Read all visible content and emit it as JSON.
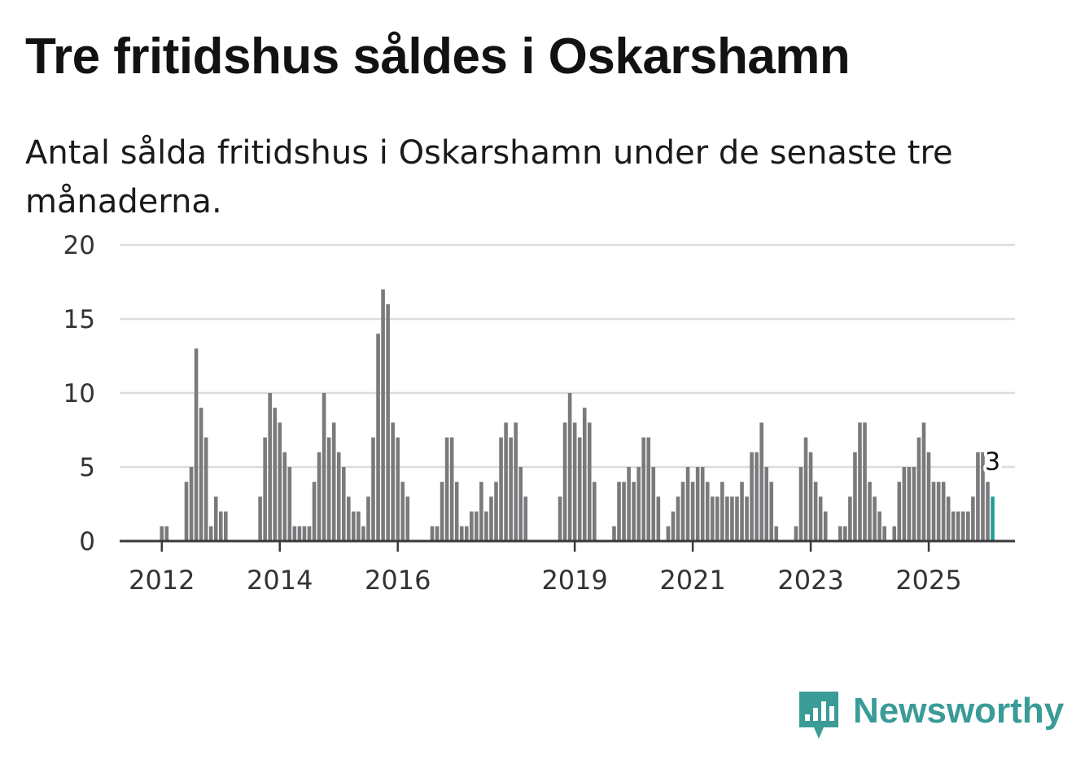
{
  "title": "Tre fritidshus såldes i Oskarshamn",
  "subtitle": "Antal sålda fritidshus i Oskarshamn under de senaste tre månaderna.",
  "brand": {
    "name": "Newsworthy",
    "color": "#3a9b97"
  },
  "colors": {
    "bar": "#7a797c",
    "highlight": "#1e9e96",
    "grid": "#dcdcdc",
    "axis": "#3a3a3a"
  },
  "chart_data": {
    "type": "bar",
    "title": "Tre fritidshus såldes i Oskarshamn",
    "subtitle": "Antal sålda fritidshus i Oskarshamn under de senaste tre månaderna.",
    "xlabel": "",
    "ylabel": "",
    "ylim": [
      0,
      20
    ],
    "yticks": [
      0,
      5,
      10,
      15,
      20
    ],
    "xticks": [
      "2012",
      "2014",
      "2016",
      "2019",
      "2021",
      "2023",
      "2025"
    ],
    "grid": true,
    "series_start": "2011-04",
    "frequency": "monthly",
    "highlight_label": "3",
    "values": [
      0,
      0,
      0,
      0,
      0,
      0,
      0,
      0,
      0,
      1,
      1,
      0,
      0,
      0,
      4,
      5,
      13,
      9,
      7,
      1,
      3,
      2,
      2,
      0,
      0,
      0,
      0,
      0,
      0,
      3,
      7,
      10,
      9,
      8,
      6,
      5,
      1,
      1,
      1,
      1,
      4,
      6,
      10,
      7,
      8,
      6,
      5,
      3,
      2,
      2,
      1,
      3,
      7,
      14,
      17,
      16,
      8,
      7,
      4,
      3,
      0,
      0,
      0,
      0,
      1,
      1,
      4,
      7,
      7,
      4,
      1,
      1,
      2,
      2,
      4,
      2,
      3,
      4,
      7,
      8,
      7,
      8,
      5,
      3,
      0,
      0,
      0,
      0,
      0,
      0,
      3,
      8,
      10,
      8,
      7,
      9,
      8,
      4,
      0,
      0,
      0,
      1,
      4,
      4,
      5,
      4,
      5,
      7,
      7,
      5,
      3,
      0,
      1,
      2,
      3,
      4,
      5,
      4,
      5,
      5,
      4,
      3,
      3,
      4,
      3,
      3,
      3,
      4,
      3,
      6,
      6,
      8,
      5,
      4,
      1,
      0,
      0,
      0,
      1,
      5,
      7,
      6,
      4,
      3,
      2,
      0,
      0,
      1,
      1,
      3,
      6,
      8,
      8,
      4,
      3,
      2,
      1,
      0,
      1,
      4,
      5,
      5,
      5,
      7,
      8,
      6,
      4,
      4,
      4,
      3,
      2,
      2,
      2,
      2,
      3,
      6,
      6,
      4,
      3
    ]
  }
}
